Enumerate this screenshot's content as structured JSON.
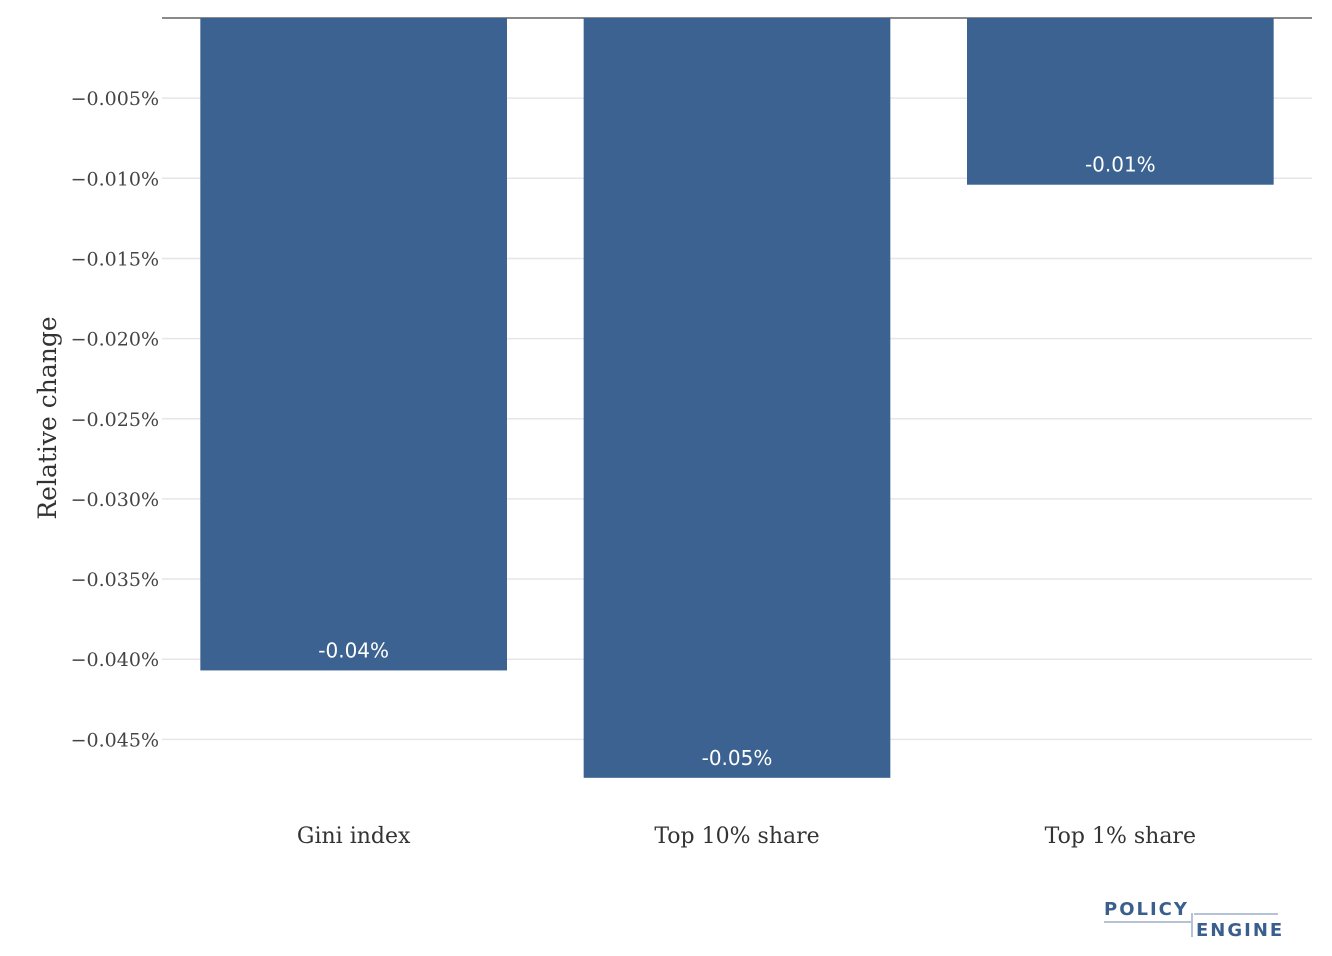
{
  "chart_data": {
    "type": "bar",
    "categories": [
      "Gini index",
      "Top 10% share",
      "Top 1% share"
    ],
    "values": [
      -0.0407,
      -0.0474,
      -0.0104
    ],
    "data_labels": [
      "-0.04%",
      "-0.05%",
      "-0.01%"
    ],
    "ylabel": "Relative change",
    "xlabel": "",
    "ylim": [
      -0.0478,
      0
    ],
    "yticks": [
      -0.005,
      -0.01,
      -0.015,
      -0.02,
      -0.025,
      -0.03,
      -0.035,
      -0.04,
      -0.045
    ],
    "ytick_labels": [
      "−0.005%",
      "−0.010%",
      "−0.015%",
      "−0.020%",
      "−0.025%",
      "−0.030%",
      "−0.035%",
      "−0.040%",
      "−0.045%"
    ],
    "grid": true,
    "bar_color": "#3b6290",
    "grid_color": "#e6e6e6"
  },
  "logo": {
    "line1": "POLICY",
    "line2": "ENGINE",
    "color": "#3b5f8d"
  }
}
